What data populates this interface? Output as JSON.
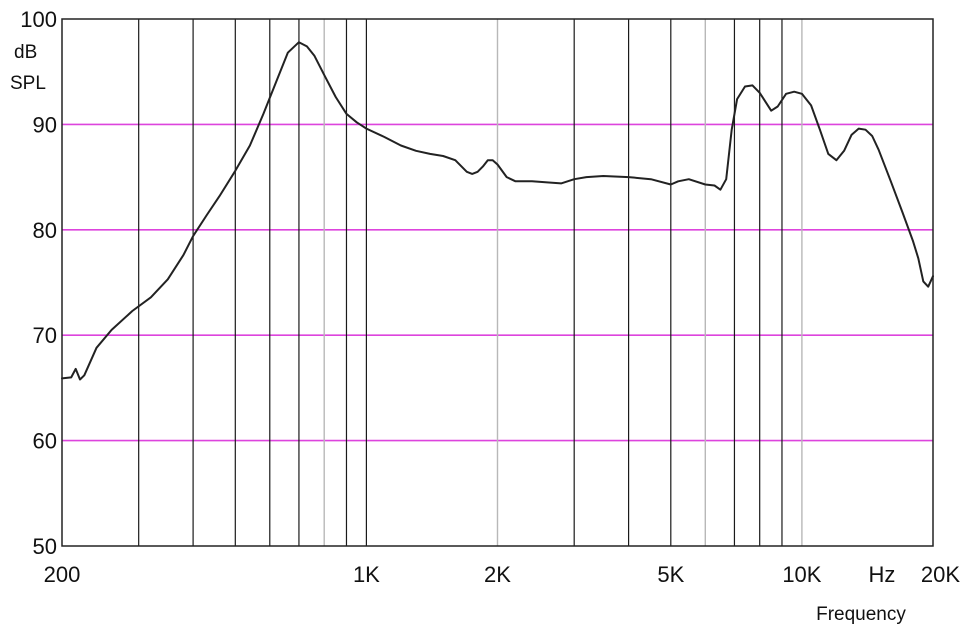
{
  "chart_data": {
    "type": "line",
    "title": "",
    "x_scale": "log",
    "xlim": [
      200,
      20000
    ],
    "ylim": [
      50,
      100
    ],
    "ylabel_lines": [
      "dB",
      "SPL"
    ],
    "xlabel": "Frequency",
    "x_unit": "Hz",
    "y_ticks": [
      50,
      60,
      70,
      80,
      90,
      100
    ],
    "y_tick_labels": [
      "50",
      "60",
      "70",
      "80",
      "90",
      "100"
    ],
    "x_ticks": [
      {
        "value": 200,
        "label": "200"
      },
      {
        "value": 1000,
        "label": "1K"
      },
      {
        "value": 2000,
        "label": "2K"
      },
      {
        "value": 5000,
        "label": "5K"
      },
      {
        "value": 10000,
        "label": "10K"
      },
      {
        "value": 20000,
        "label": "20K"
      }
    ],
    "v_gridlines": [
      {
        "value": 300,
        "style": "dark"
      },
      {
        "value": 400,
        "style": "dark"
      },
      {
        "value": 500,
        "style": "dark"
      },
      {
        "value": 600,
        "style": "dark"
      },
      {
        "value": 700,
        "style": "dark"
      },
      {
        "value": 800,
        "style": "light"
      },
      {
        "value": 900,
        "style": "dark"
      },
      {
        "value": 1000,
        "style": "dark"
      },
      {
        "value": 2000,
        "style": "light"
      },
      {
        "value": 3000,
        "style": "dark"
      },
      {
        "value": 4000,
        "style": "dark"
      },
      {
        "value": 5000,
        "style": "dark"
      },
      {
        "value": 6000,
        "style": "light"
      },
      {
        "value": 7000,
        "style": "dark"
      },
      {
        "value": 8000,
        "style": "dark"
      },
      {
        "value": 9000,
        "style": "dark"
      },
      {
        "value": 10000,
        "style": "light"
      }
    ],
    "h_gridlines": [
      60,
      70,
      80,
      90
    ],
    "grid_colors": {
      "horizontal": "#dd44dd",
      "dark": "#1a1a1a",
      "light": "#b8b8b8",
      "curve": "#222222",
      "frame": "#222222"
    },
    "series": [
      {
        "x": [
          200,
          210,
          215,
          220,
          225,
          240,
          260,
          290,
          320,
          350,
          380,
          400,
          430,
          460,
          500,
          540,
          580,
          620,
          660,
          700,
          730,
          760,
          800,
          850,
          900,
          950,
          1000,
          1100,
          1200,
          1300,
          1400,
          1500,
          1600,
          1700,
          1750,
          1800,
          1850,
          1900,
          1950,
          2000,
          2100,
          2200,
          2400,
          2600,
          2800,
          3000,
          3200,
          3500,
          4000,
          4500,
          5000,
          5200,
          5500,
          6000,
          6300,
          6500,
          6700,
          6900,
          7100,
          7400,
          7700,
          8000,
          8500,
          8800,
          9200,
          9600,
          10000,
          10500,
          11000,
          11500,
          12000,
          12500,
          13000,
          13500,
          14000,
          14500,
          15000,
          16000,
          17000,
          18000,
          18500,
          19000,
          19500,
          20000
        ],
        "y": [
          65.9,
          66.0,
          66.8,
          65.8,
          66.2,
          68.8,
          70.5,
          72.3,
          73.6,
          75.3,
          77.6,
          79.4,
          81.4,
          83.2,
          85.6,
          88.0,
          91.0,
          94.0,
          96.8,
          97.8,
          97.4,
          96.5,
          94.7,
          92.6,
          91.0,
          90.2,
          89.6,
          88.8,
          88.0,
          87.5,
          87.2,
          87.0,
          86.6,
          85.5,
          85.3,
          85.5,
          86.0,
          86.6,
          86.6,
          86.2,
          85.0,
          84.6,
          84.6,
          84.5,
          84.4,
          84.8,
          85.0,
          85.1,
          85.0,
          84.8,
          84.3,
          84.6,
          84.8,
          84.3,
          84.2,
          83.8,
          84.8,
          89.5,
          92.4,
          93.6,
          93.7,
          93.0,
          91.3,
          91.7,
          92.9,
          93.1,
          92.9,
          91.8,
          89.5,
          87.2,
          86.6,
          87.5,
          89.0,
          89.6,
          89.5,
          88.9,
          87.6,
          84.6,
          81.7,
          78.9,
          77.3,
          75.1,
          74.6,
          75.6
        ]
      }
    ]
  }
}
